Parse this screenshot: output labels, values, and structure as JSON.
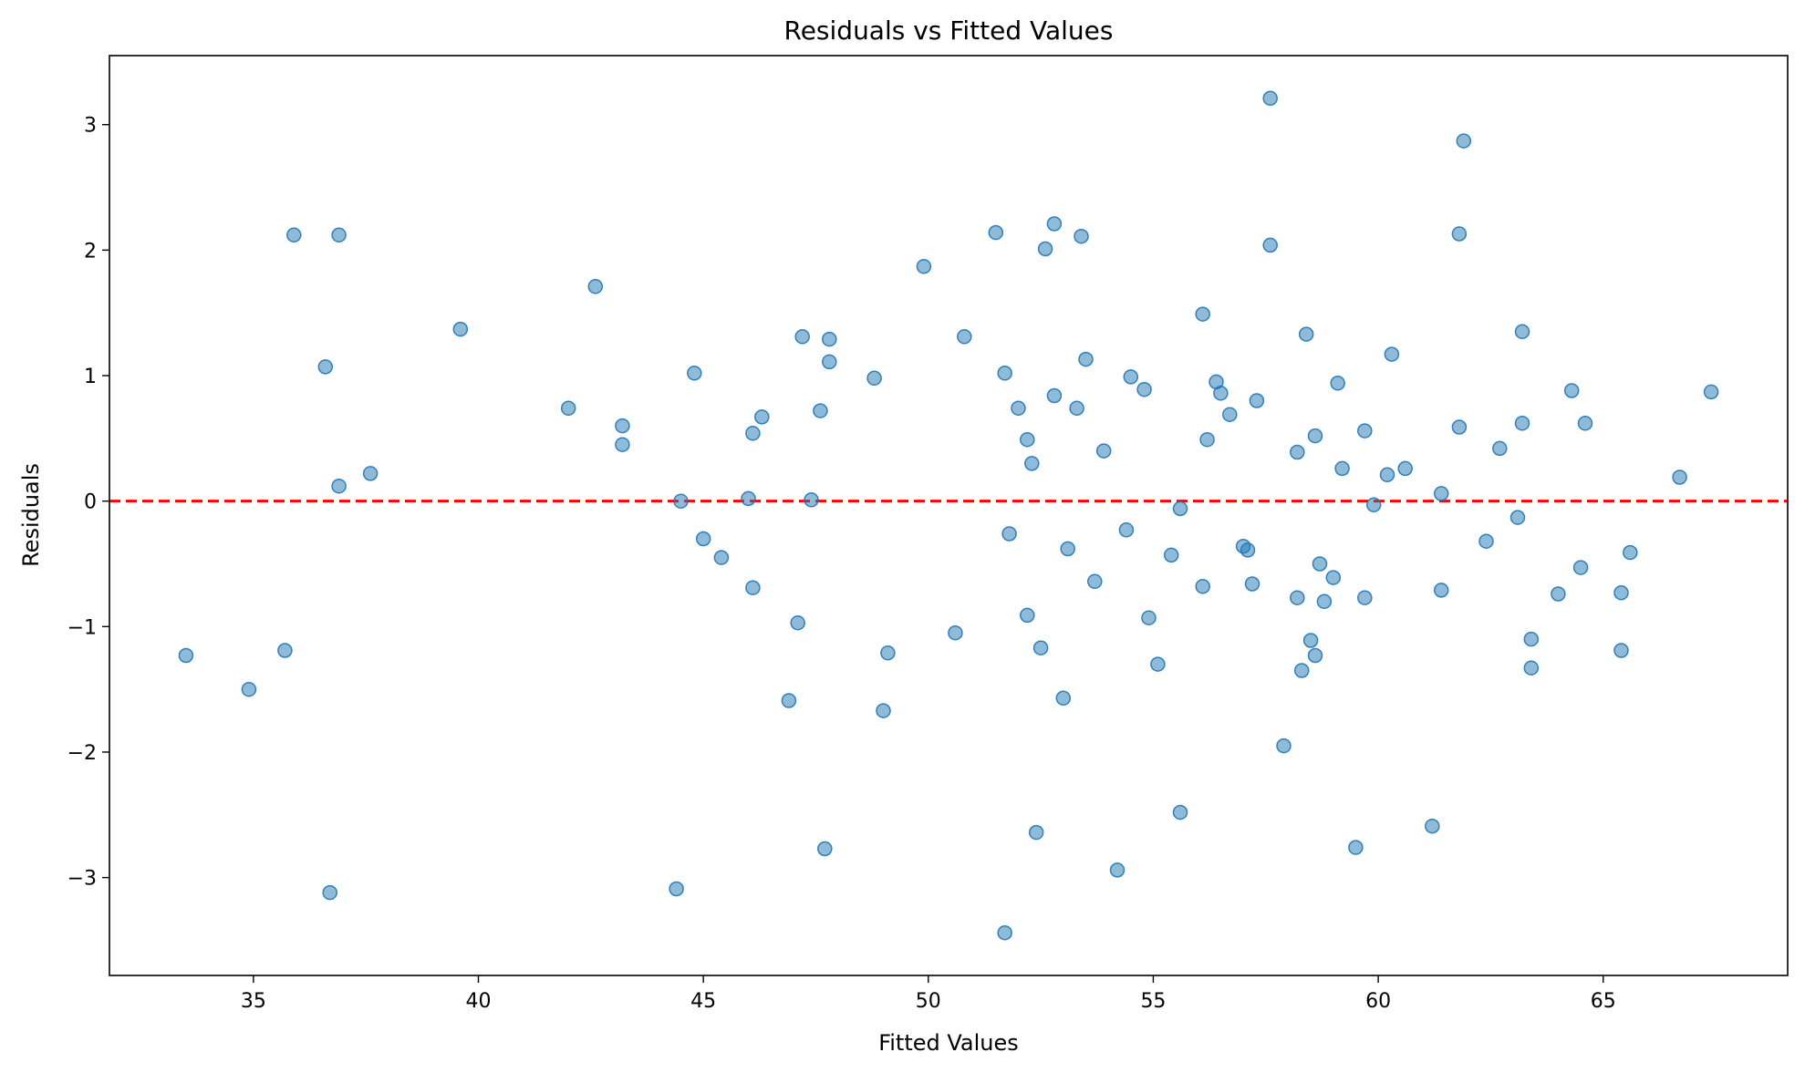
{
  "chart_data": {
    "type": "scatter",
    "title": "Residuals vs Fitted Values",
    "xlabel": "Fitted Values",
    "ylabel": "Residuals",
    "xlim": [
      31.8,
      69.1
    ],
    "ylim": [
      -3.78,
      3.55
    ],
    "xticks": [
      35,
      40,
      45,
      50,
      55,
      60,
      65
    ],
    "yticks": [
      -3,
      -2,
      -1,
      0,
      1,
      2,
      3
    ],
    "xtick_labels": [
      "35",
      "40",
      "45",
      "50",
      "55",
      "60",
      "65"
    ],
    "ytick_labels": [
      "−3",
      "−2",
      "−1",
      "0",
      "1",
      "2",
      "3"
    ],
    "grid": false,
    "reference_line": {
      "y": 0,
      "color": "#ff0000",
      "style": "dashed"
    },
    "point_color": "#1f77b4",
    "points": [
      [
        33.5,
        -1.23
      ],
      [
        34.9,
        -1.5
      ],
      [
        35.7,
        -1.19
      ],
      [
        35.9,
        2.12
      ],
      [
        36.6,
        1.07
      ],
      [
        36.7,
        -3.12
      ],
      [
        36.9,
        0.12
      ],
      [
        36.9,
        2.12
      ],
      [
        37.6,
        0.22
      ],
      [
        39.6,
        1.37
      ],
      [
        42.0,
        0.74
      ],
      [
        42.6,
        1.71
      ],
      [
        43.2,
        0.6
      ],
      [
        43.2,
        0.45
      ],
      [
        44.4,
        -3.09
      ],
      [
        44.5,
        0.0
      ],
      [
        44.8,
        1.02
      ],
      [
        45.0,
        -0.3
      ],
      [
        45.4,
        -0.45
      ],
      [
        46.0,
        0.02
      ],
      [
        46.1,
        0.54
      ],
      [
        46.1,
        -0.69
      ],
      [
        46.3,
        0.67
      ],
      [
        46.9,
        -1.59
      ],
      [
        47.1,
        -0.97
      ],
      [
        47.2,
        1.31
      ],
      [
        47.4,
        0.01
      ],
      [
        47.6,
        0.72
      ],
      [
        47.8,
        1.11
      ],
      [
        47.8,
        1.29
      ],
      [
        47.7,
        -2.77
      ],
      [
        48.8,
        0.98
      ],
      [
        49.0,
        -1.67
      ],
      [
        49.1,
        -1.21
      ],
      [
        49.9,
        1.87
      ],
      [
        50.6,
        -1.05
      ],
      [
        50.8,
        1.31
      ],
      [
        51.5,
        2.14
      ],
      [
        51.7,
        1.02
      ],
      [
        51.7,
        -3.44
      ],
      [
        51.8,
        -0.26
      ],
      [
        52.0,
        0.74
      ],
      [
        52.2,
        -0.91
      ],
      [
        52.2,
        0.49
      ],
      [
        52.3,
        0.3
      ],
      [
        52.4,
        -2.64
      ],
      [
        52.5,
        -1.17
      ],
      [
        52.6,
        2.01
      ],
      [
        52.8,
        2.21
      ],
      [
        52.8,
        0.84
      ],
      [
        53.0,
        -1.57
      ],
      [
        53.1,
        -0.38
      ],
      [
        53.3,
        0.74
      ],
      [
        53.4,
        2.11
      ],
      [
        53.5,
        1.13
      ],
      [
        53.7,
        -0.64
      ],
      [
        53.9,
        0.4
      ],
      [
        54.2,
        -2.94
      ],
      [
        54.4,
        -0.23
      ],
      [
        54.5,
        0.99
      ],
      [
        54.8,
        0.89
      ],
      [
        54.9,
        -0.93
      ],
      [
        55.1,
        -1.3
      ],
      [
        55.4,
        -0.43
      ],
      [
        55.6,
        -0.06
      ],
      [
        55.6,
        -2.48
      ],
      [
        56.1,
        1.49
      ],
      [
        56.1,
        -0.68
      ],
      [
        56.2,
        0.49
      ],
      [
        56.4,
        0.95
      ],
      [
        56.5,
        0.86
      ],
      [
        56.7,
        0.69
      ],
      [
        57.0,
        -0.36
      ],
      [
        57.1,
        -0.39
      ],
      [
        57.2,
        -0.66
      ],
      [
        57.3,
        0.8
      ],
      [
        57.6,
        3.21
      ],
      [
        57.6,
        2.04
      ],
      [
        57.9,
        -1.95
      ],
      [
        58.2,
        0.39
      ],
      [
        58.2,
        -0.77
      ],
      [
        58.3,
        -1.35
      ],
      [
        58.4,
        1.33
      ],
      [
        58.5,
        -1.11
      ],
      [
        58.6,
        -1.23
      ],
      [
        58.6,
        0.52
      ],
      [
        58.7,
        -0.5
      ],
      [
        58.8,
        -0.8
      ],
      [
        59.0,
        -0.61
      ],
      [
        59.1,
        0.94
      ],
      [
        59.2,
        0.26
      ],
      [
        59.5,
        -2.76
      ],
      [
        59.7,
        0.56
      ],
      [
        59.7,
        -0.77
      ],
      [
        59.9,
        -0.03
      ],
      [
        60.2,
        0.21
      ],
      [
        60.3,
        1.17
      ],
      [
        60.6,
        0.26
      ],
      [
        61.2,
        -2.59
      ],
      [
        61.4,
        0.06
      ],
      [
        61.4,
        -0.71
      ],
      [
        61.8,
        2.13
      ],
      [
        61.8,
        0.59
      ],
      [
        61.9,
        2.87
      ],
      [
        62.4,
        -0.32
      ],
      [
        62.7,
        0.42
      ],
      [
        63.1,
        -0.13
      ],
      [
        63.2,
        1.35
      ],
      [
        63.2,
        0.62
      ],
      [
        63.4,
        -1.33
      ],
      [
        63.4,
        -1.1
      ],
      [
        64.0,
        -0.74
      ],
      [
        64.3,
        0.88
      ],
      [
        64.5,
        -0.53
      ],
      [
        64.6,
        0.62
      ],
      [
        65.4,
        -1.19
      ],
      [
        65.4,
        -0.73
      ],
      [
        65.6,
        -0.41
      ],
      [
        66.7,
        0.19
      ],
      [
        67.4,
        0.87
      ]
    ]
  }
}
